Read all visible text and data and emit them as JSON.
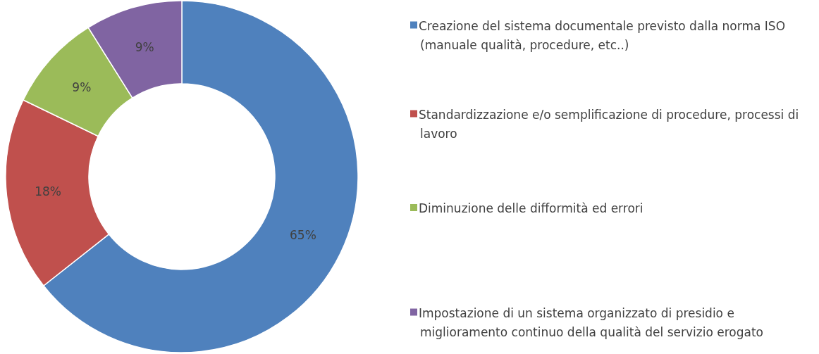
{
  "chart_data": {
    "type": "donut",
    "categories": [
      "Creazione del sistema documentale previsto dalla norma ISO (manuale qualità, procedure, etc..)",
      "Standardizzazione e/o semplificazione di procedure, processi di lavoro",
      "Diminuzione delle difformità ed errori",
      "Impostazione di un sistema organizzato di presidio e miglioramento continuo della qualità del servizio erogato"
    ],
    "values": [
      65,
      18,
      9,
      9
    ],
    "value_labels": [
      "65%",
      "18%",
      "9%",
      "9%"
    ],
    "colors": [
      "#4f81bd",
      "#c0504d",
      "#9bbb59",
      "#8064a2"
    ],
    "legend": "right"
  }
}
